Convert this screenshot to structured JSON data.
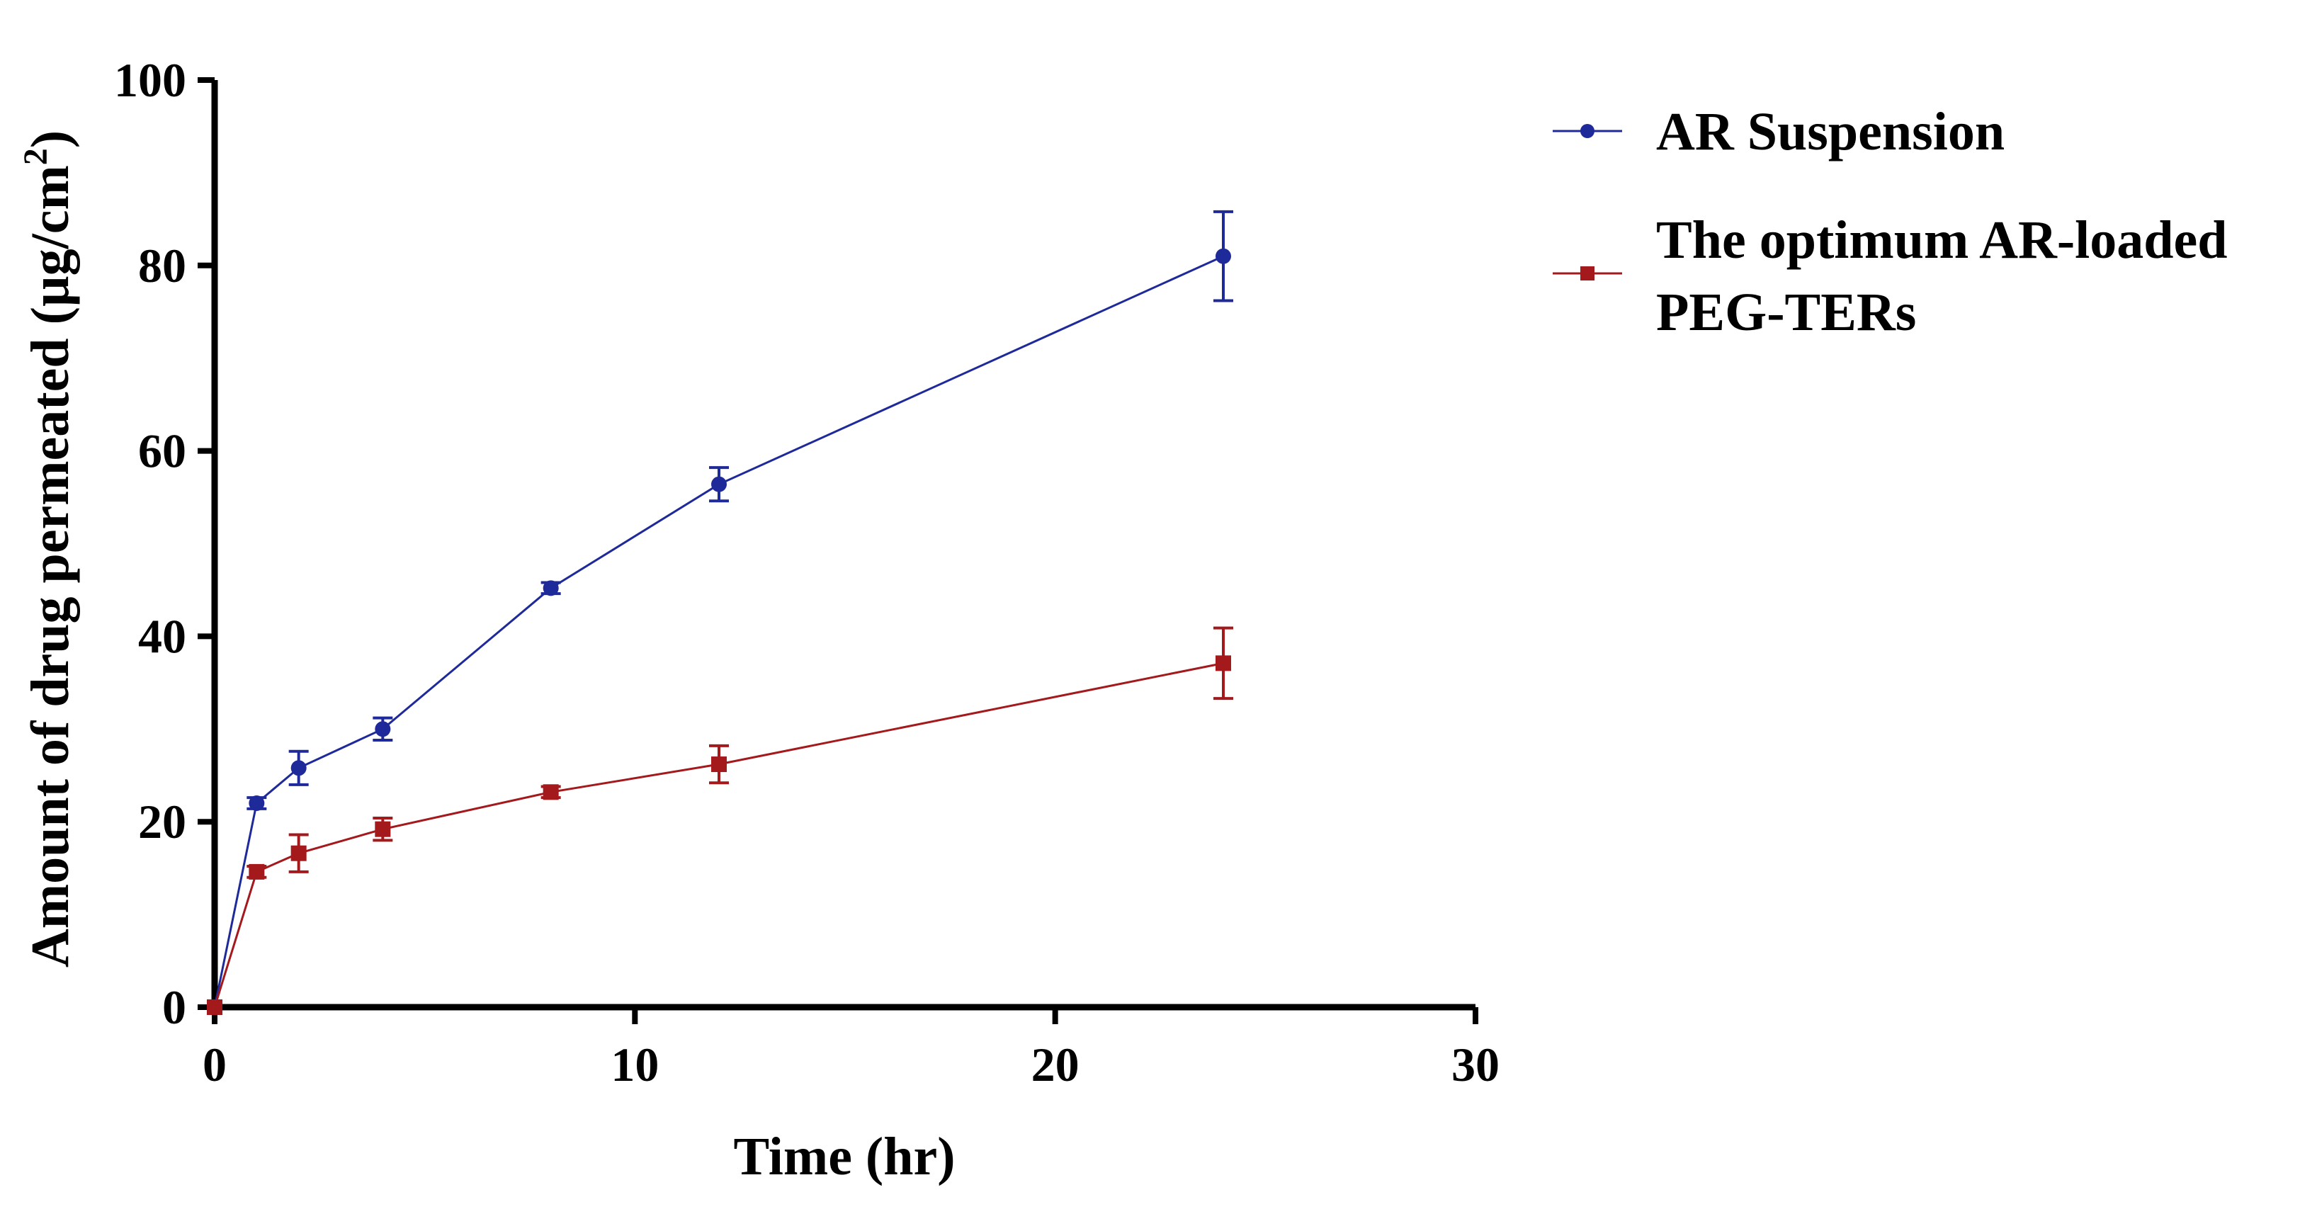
{
  "chart_data": {
    "type": "line",
    "title": "",
    "xlabel": "Time (hr)",
    "ylabel_main": "Amount of drug permeated (µg/cm",
    "ylabel_sup": "2",
    "ylabel_close": ")",
    "xlim": [
      0,
      30
    ],
    "ylim": [
      0,
      100
    ],
    "xticks": [
      0,
      10,
      20,
      30
    ],
    "yticks": [
      0,
      20,
      40,
      60,
      80,
      100
    ],
    "legend_position": "right",
    "series": [
      {
        "name": "AR Suspension",
        "legend_lines": [
          "AR Suspension"
        ],
        "color": "#1f2a9a",
        "marker": "circle",
        "x": [
          0,
          1,
          2,
          4,
          8,
          12,
          24
        ],
        "y": [
          0,
          22,
          25.8,
          30,
          45.2,
          56.4,
          81
        ],
        "err": [
          0,
          0.6,
          1.8,
          1.2,
          0.6,
          1.8,
          4.8
        ]
      },
      {
        "name": "The optimum AR-loaded PEG-TERs",
        "legend_lines": [
          "The optimum AR-loaded",
          "PEG-TERs"
        ],
        "color": "#a3191c",
        "marker": "square",
        "x": [
          0,
          1,
          2,
          4,
          8,
          12,
          24
        ],
        "y": [
          0,
          14.6,
          16.6,
          19.2,
          23.2,
          26.2,
          37.1
        ],
        "err": [
          0,
          0.6,
          2,
          1.2,
          0.6,
          2,
          3.8
        ]
      }
    ]
  }
}
